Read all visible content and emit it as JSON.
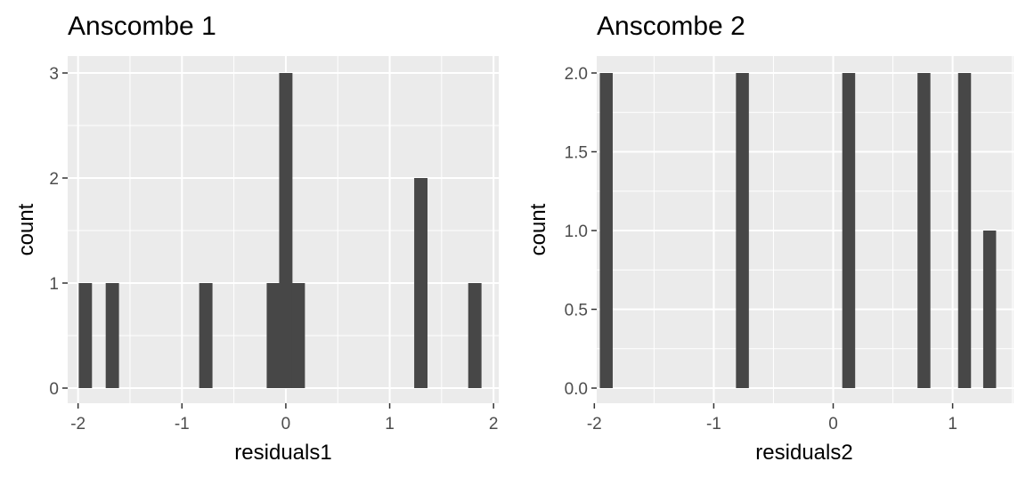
{
  "colors": {
    "panel_background": "#ebebeb",
    "grid_major": "#ffffff",
    "bar_fill": "#474747",
    "tick_text": "#4d4d4d",
    "title_text": "#000000"
  },
  "chart_data": [
    {
      "type": "bar",
      "title": "Anscombe 1",
      "xlabel": "residuals1",
      "ylabel": "count",
      "xlim": [
        -2.1,
        2.05
      ],
      "ylim": [
        0,
        3
      ],
      "x_ticks": [
        -2,
        -1,
        0,
        1,
        2
      ],
      "x_tick_labels": [
        "-2",
        "-1",
        "0",
        "1",
        "2"
      ],
      "y_ticks": [
        0,
        1,
        2,
        3
      ],
      "y_tick_labels": [
        "0",
        "1",
        "2",
        "3"
      ],
      "grid": true,
      "bin_width": 0.128,
      "bars": [
        {
          "x": -1.93,
          "count": 1
        },
        {
          "x": -1.67,
          "count": 1
        },
        {
          "x": -0.77,
          "count": 1
        },
        {
          "x": -0.12,
          "count": 1
        },
        {
          "x": 0.0,
          "count": 3
        },
        {
          "x": 0.12,
          "count": 1
        },
        {
          "x": 1.3,
          "count": 2
        },
        {
          "x": 1.82,
          "count": 1
        }
      ]
    },
    {
      "type": "bar",
      "title": "Anscombe 2",
      "xlabel": "residuals2",
      "ylabel": "count",
      "xlim": [
        -1.98,
        1.51
      ],
      "ylim": [
        0,
        2
      ],
      "x_ticks": [
        -2,
        -1,
        0,
        1
      ],
      "x_tick_labels": [
        "-2",
        "-1",
        "0",
        "1"
      ],
      "y_ticks": [
        0,
        0.5,
        1,
        1.5,
        2
      ],
      "y_tick_labels": [
        "0.0",
        "0.5",
        "1.0",
        "1.5",
        "2.0"
      ],
      "grid": true,
      "bin_width": 0.108,
      "bars": [
        {
          "x": -1.9,
          "count": 2
        },
        {
          "x": -0.76,
          "count": 2
        },
        {
          "x": 0.13,
          "count": 2
        },
        {
          "x": 0.76,
          "count": 2
        },
        {
          "x": 1.1,
          "count": 2
        },
        {
          "x": 1.31,
          "count": 1
        }
      ]
    }
  ]
}
